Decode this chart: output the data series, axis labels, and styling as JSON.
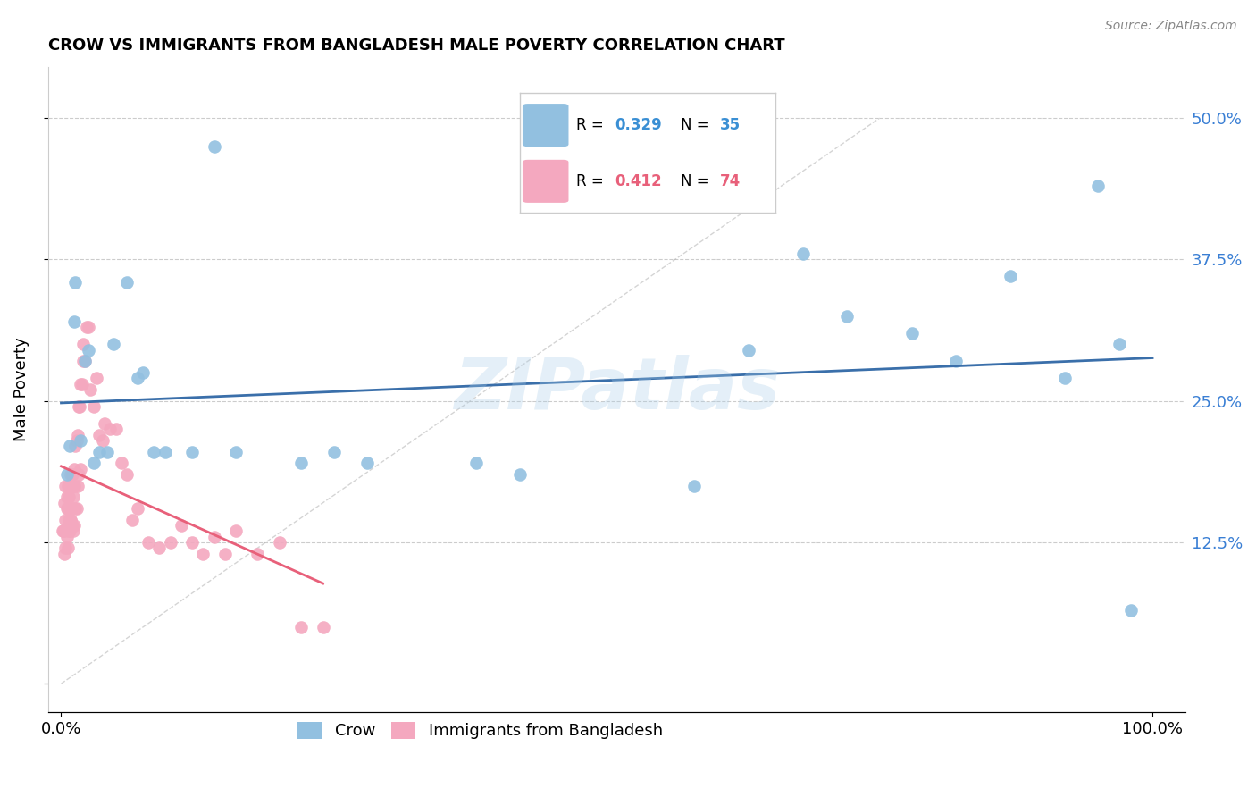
{
  "title": "CROW VS IMMIGRANTS FROM BANGLADESH MALE POVERTY CORRELATION CHART",
  "source": "Source: ZipAtlas.com",
  "ylabel": "Male Poverty",
  "ytick_vals": [
    0.0,
    0.125,
    0.25,
    0.375,
    0.5
  ],
  "ytick_labels": [
    "",
    "12.5%",
    "25.0%",
    "37.5%",
    "50.0%"
  ],
  "xtick_vals": [
    0.0,
    1.0
  ],
  "xtick_labels": [
    "0.0%",
    "100.0%"
  ],
  "legend_r_crow": "0.329",
  "legend_n_crow": "35",
  "legend_r_bangladesh": "0.412",
  "legend_n_bangladesh": "74",
  "crow_color": "#92c0e0",
  "crow_line_color": "#3a6faa",
  "bangladesh_color": "#f4a8bf",
  "bangladesh_line_color": "#e8607a",
  "watermark": "ZIPatlas",
  "background_color": "#ffffff",
  "crow_color_legend": "#92c0e0",
  "bangladesh_color_legend": "#f4a8bf",
  "r_color_crow": "#3a8fd4",
  "n_color_crow": "#3a8fd4",
  "r_color_bangladesh": "#e8607a",
  "n_color_bangladesh": "#e8607a",
  "crow_scatter_x": [
    0.008,
    0.012,
    0.013,
    0.018,
    0.022,
    0.025,
    0.03,
    0.035,
    0.042,
    0.048,
    0.06,
    0.07,
    0.075,
    0.085,
    0.095,
    0.12,
    0.14,
    0.16,
    0.22,
    0.25,
    0.28,
    0.38,
    0.42,
    0.58,
    0.63,
    0.68,
    0.72,
    0.78,
    0.82,
    0.87,
    0.92,
    0.95,
    0.97,
    0.98,
    0.005
  ],
  "crow_scatter_y": [
    0.21,
    0.32,
    0.355,
    0.215,
    0.285,
    0.295,
    0.195,
    0.205,
    0.205,
    0.3,
    0.355,
    0.27,
    0.275,
    0.205,
    0.205,
    0.205,
    0.475,
    0.205,
    0.195,
    0.205,
    0.195,
    0.195,
    0.185,
    0.175,
    0.295,
    0.38,
    0.325,
    0.31,
    0.285,
    0.36,
    0.27,
    0.44,
    0.3,
    0.065,
    0.185
  ],
  "bangladesh_scatter_x": [
    0.001,
    0.002,
    0.003,
    0.003,
    0.004,
    0.004,
    0.005,
    0.005,
    0.006,
    0.006,
    0.007,
    0.007,
    0.008,
    0.008,
    0.009,
    0.009,
    0.01,
    0.01,
    0.011,
    0.011,
    0.012,
    0.012,
    0.013,
    0.013,
    0.014,
    0.014,
    0.015,
    0.015,
    0.016,
    0.016,
    0.017,
    0.018,
    0.018,
    0.019,
    0.02,
    0.02,
    0.022,
    0.023,
    0.025,
    0.027,
    0.03,
    0.032,
    0.035,
    0.038,
    0.04,
    0.045,
    0.05,
    0.055,
    0.06,
    0.065,
    0.07,
    0.08,
    0.09,
    0.1,
    0.11,
    0.12,
    0.13,
    0.14,
    0.15,
    0.16,
    0.18,
    0.2,
    0.22,
    0.24,
    0.003,
    0.004,
    0.005,
    0.006,
    0.007,
    0.008,
    0.009,
    0.01,
    0.011,
    0.012
  ],
  "bangladesh_scatter_y": [
    0.135,
    0.135,
    0.115,
    0.16,
    0.12,
    0.175,
    0.13,
    0.165,
    0.12,
    0.175,
    0.135,
    0.165,
    0.135,
    0.175,
    0.145,
    0.185,
    0.14,
    0.185,
    0.135,
    0.175,
    0.14,
    0.19,
    0.155,
    0.21,
    0.155,
    0.215,
    0.175,
    0.22,
    0.185,
    0.245,
    0.245,
    0.19,
    0.265,
    0.265,
    0.285,
    0.3,
    0.285,
    0.315,
    0.315,
    0.26,
    0.245,
    0.27,
    0.22,
    0.215,
    0.23,
    0.225,
    0.225,
    0.195,
    0.185,
    0.145,
    0.155,
    0.125,
    0.12,
    0.125,
    0.14,
    0.125,
    0.115,
    0.13,
    0.115,
    0.135,
    0.115,
    0.125,
    0.05,
    0.05,
    0.135,
    0.145,
    0.155,
    0.155,
    0.145,
    0.155,
    0.145,
    0.155,
    0.165,
    0.175
  ]
}
